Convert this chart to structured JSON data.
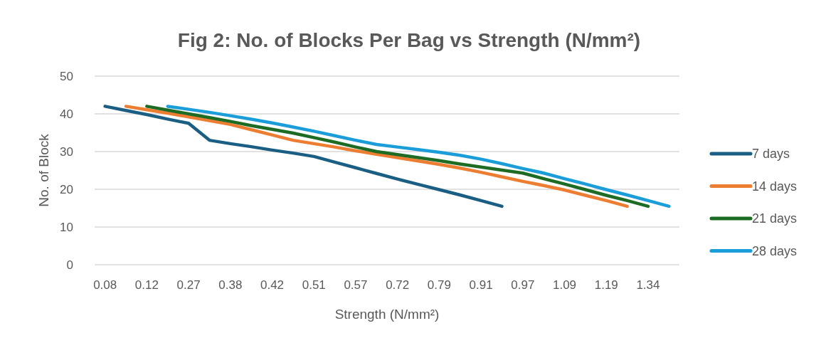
{
  "chart_data": {
    "type": "line",
    "title": "Fig 2: No. of Blocks Per Bag vs Strength (N/mm²)",
    "xlabel": "Strength (N/mm²)",
    "ylabel": "No. of Block",
    "categories": [
      "0.08",
      null,
      "0.12",
      null,
      "0.27",
      null,
      "0.38",
      null,
      "0.42",
      null,
      "0.51",
      null,
      "0.57",
      null,
      "0.72",
      null,
      "0.79",
      null,
      "0.91",
      null,
      "0.97",
      null,
      "1.09",
      null,
      "1.19",
      null,
      "1.34",
      null
    ],
    "series": [
      {
        "name": "7 days",
        "color": "#1b5e83",
        "values": [
          42,
          40.9,
          39.8,
          38.6,
          37.5,
          33,
          32.1,
          31.3,
          30.4,
          29.6,
          28.7,
          27.2,
          25.7,
          24.2,
          22.7,
          21.3,
          19.9,
          18.5,
          17,
          15.5,
          null,
          null,
          null,
          null,
          null,
          null,
          null,
          null
        ]
      },
      {
        "name": "14 days",
        "color": "#ed7d31",
        "values": [
          null,
          42,
          41.1,
          40.2,
          39.2,
          38.2,
          37.2,
          35.8,
          34.4,
          33,
          32.1,
          31.2,
          30.2,
          29.3,
          28.4,
          27.5,
          26.6,
          25.6,
          24.5,
          23.3,
          22.1,
          21,
          19.8,
          18.4,
          17,
          15.5,
          null,
          null
        ]
      },
      {
        "name": "21 days",
        "color": "#1e6b24",
        "values": [
          null,
          null,
          42,
          41,
          40,
          39,
          38,
          36.9,
          35.9,
          34.9,
          33.7,
          32.5,
          31.2,
          30,
          29.2,
          28.4,
          27.6,
          26.7,
          25.9,
          25.1,
          24.3,
          22.8,
          21.4,
          19.9,
          18.4,
          17,
          15.5,
          null
        ]
      },
      {
        "name": "28 days",
        "color": "#1b9dd9",
        "values": [
          null,
          null,
          null,
          42,
          41.2,
          40.4,
          39.5,
          38.6,
          37.6,
          36.5,
          35.4,
          34.2,
          33,
          31.9,
          31.2,
          30.5,
          29.8,
          29,
          28,
          26.8,
          25.5,
          24.3,
          22.8,
          21.4,
          19.9,
          18.5,
          17,
          15.5
        ]
      }
    ],
    "ylim": [
      0,
      50
    ],
    "yticks": [
      0,
      10,
      20,
      30,
      40,
      50
    ],
    "grid": "y",
    "legend": "right",
    "line_style": "solid",
    "marker": "none"
  }
}
